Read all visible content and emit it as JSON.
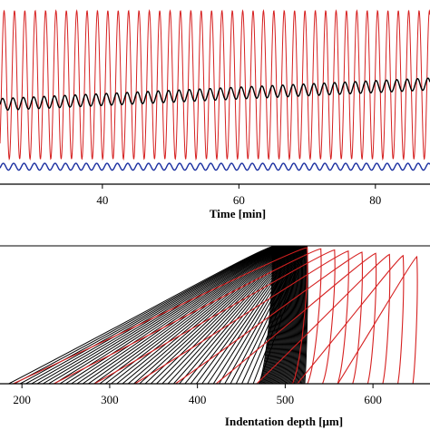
{
  "chart_data": [
    {
      "type": "line",
      "title": "",
      "xlabel": "Time [min]",
      "ylabel": "",
      "xlim": [
        25,
        88
      ],
      "ylim": [
        0,
        1
      ],
      "x_ticks": [
        40,
        60,
        80
      ],
      "grid": false,
      "legend": "none",
      "series": [
        {
          "color": "#d62020",
          "shape": "sinusoid",
          "period_min": 1.52,
          "min": 0.11,
          "max": 0.98
        },
        {
          "color": "#000000",
          "shape": "sinusoid with rising trend",
          "period_min": 1.52,
          "start": 0.43,
          "end": 0.55,
          "amplitude": 0.035
        },
        {
          "color": "#1a2fa0",
          "shape": "sinusoid",
          "period_min": 1.52,
          "center": 0.065,
          "amplitude": 0.02
        }
      ]
    },
    {
      "type": "line",
      "title": "",
      "xlabel": "Indentation depth [μm]",
      "ylabel": "",
      "xlim": [
        175,
        665
      ],
      "ylim": [
        0,
        1
      ],
      "x_ticks": [
        200,
        300,
        400,
        500,
        600
      ],
      "grid": false,
      "legend": "none",
      "series": [
        {
          "color": "#000000",
          "shape": "nested loading-unloading loops",
          "loop_count": 45,
          "start_depth_first": 185,
          "start_depth_last": 470,
          "max_depth_first": 485,
          "max_depth_last": 525
        },
        {
          "color": "#d62020",
          "shape": "nested loading-unloading loops",
          "loop_count": 9,
          "start_depth_first": 190,
          "start_depth_last": 560,
          "max_depth_first": 525,
          "max_depth_last": 650
        }
      ]
    }
  ]
}
